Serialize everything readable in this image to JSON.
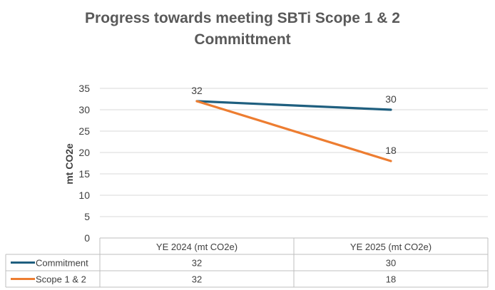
{
  "chart_data": {
    "type": "line",
    "title_lines": [
      "Progress towards meeting SBTi Scope 1 & 2",
      "Committment"
    ],
    "ylabel": "mt CO2e",
    "xlabel": "",
    "categories": [
      "YE 2024 (mt CO2e)",
      "YE 2025 (mt CO2e)"
    ],
    "ylim": [
      0,
      35
    ],
    "yticks": [
      0,
      5,
      10,
      15,
      20,
      25,
      30,
      35
    ],
    "grid": true,
    "legend": "data-table",
    "series": [
      {
        "name": "Commitment",
        "values": [
          32,
          30
        ],
        "color": "#1f5f7f"
      },
      {
        "name": "Scope 1 & 2",
        "values": [
          32,
          18
        ],
        "color": "#ed7d31"
      }
    ],
    "data_labels": [
      {
        "series": 1,
        "point": 0,
        "text": "32"
      },
      {
        "series": 0,
        "point": 1,
        "text": "30"
      },
      {
        "series": 1,
        "point": 1,
        "text": "18"
      }
    ]
  }
}
